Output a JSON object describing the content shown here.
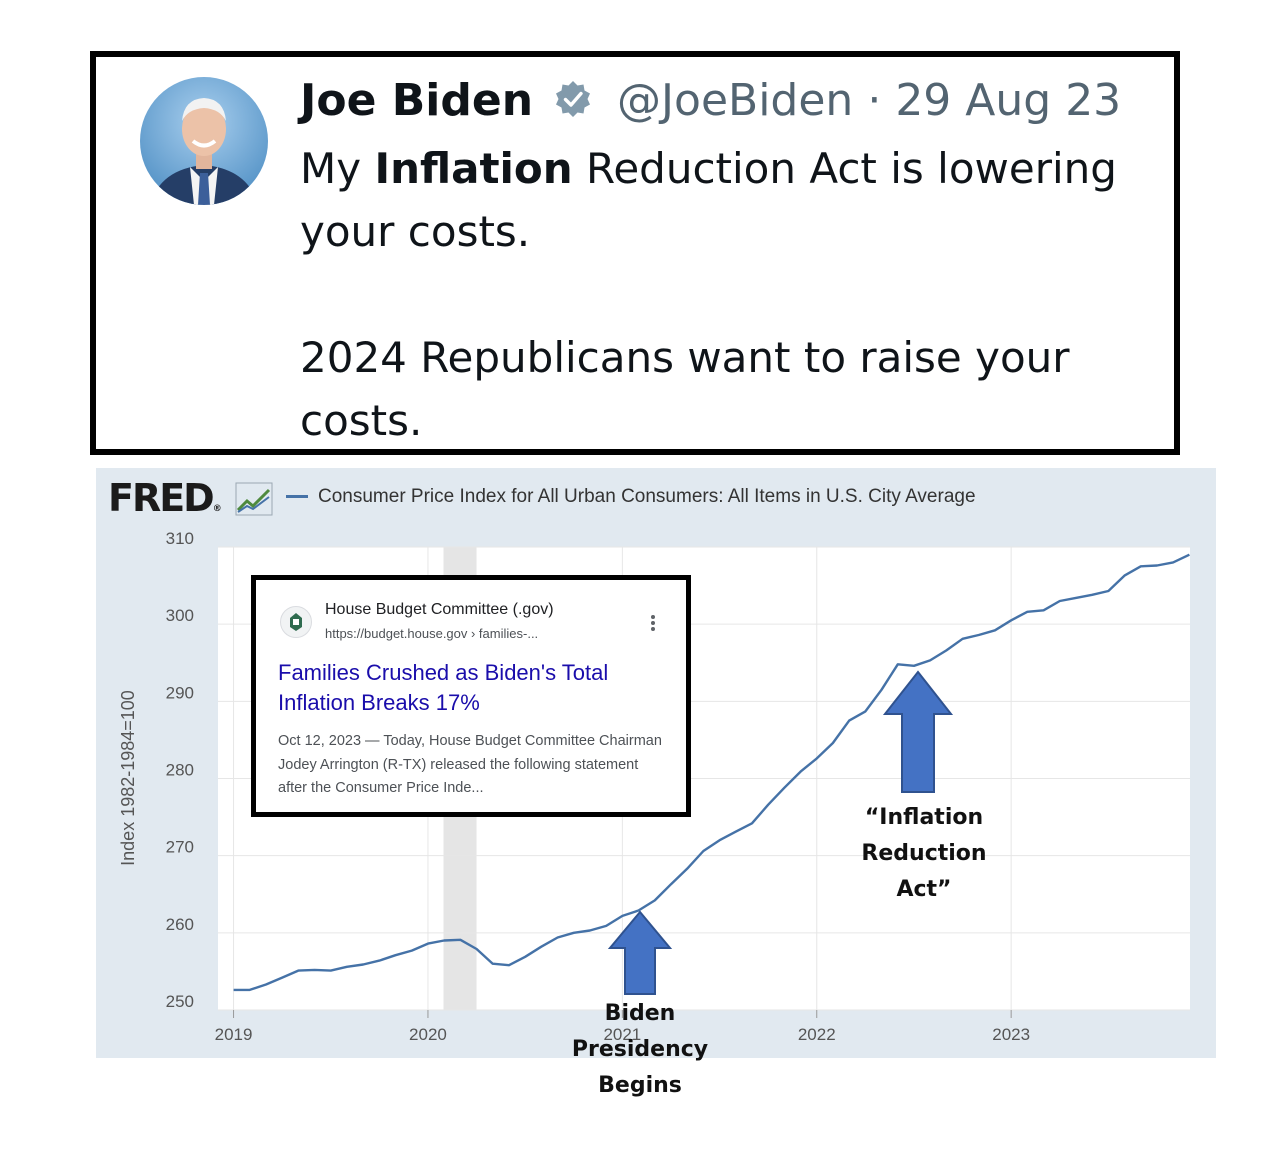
{
  "tweet": {
    "name": "Joe Biden",
    "handle": "@JoeBiden",
    "separator": "·",
    "date": "29 Aug 23",
    "text_pre": "My ",
    "text_bold": "Inflation",
    "text_post": " Reduction Act is lowering your costs.",
    "text_line2": "2024 Republicans want to raise your costs."
  },
  "fred": {
    "logo": "FRED",
    "logo_mark": "®",
    "legend": "Consumer Price Index for All Urban Consumers: All Items in U.S. City Average"
  },
  "search_card": {
    "site": "House Budget Committee (.gov)",
    "url": "https://budget.house.gov › families-...",
    "title": "Families Crushed as Biden's Total Inflation Breaks 17%",
    "snippet": "Oct 12, 2023 — Today, House Budget Committee Chairman Jodey Arrington (R-TX) released the following statement after the Consumer Price Inde..."
  },
  "annotations": {
    "presidency": [
      "Biden",
      "Presidency",
      "Begins"
    ],
    "ira": [
      "“Inflation",
      "Reduction",
      "Act”"
    ]
  },
  "colors": {
    "line": "#4572a7",
    "arrow_fill": "#4472c4",
    "chart_bg": "#e1e9f0",
    "recession": "#e5e5e5",
    "link": "#1a0dab"
  },
  "chart_data": {
    "type": "line",
    "title": "",
    "ylabel": "Index 1982-1984=100",
    "xlabel": "",
    "ylim": [
      250,
      310
    ],
    "xlim": [
      2018.92,
      2023.92
    ],
    "yticks": [
      250,
      260,
      270,
      280,
      290,
      300,
      310
    ],
    "xticks": [
      "2019",
      "2020",
      "2021",
      "2022",
      "2023"
    ],
    "grid": true,
    "legend": "top",
    "recession_band": [
      2020.08,
      2020.25
    ],
    "series": [
      {
        "name": "Consumer Price Index for All Urban Consumers: All Items in U.S. City Average",
        "x": [
          2019.0,
          2019.083,
          2019.167,
          2019.25,
          2019.333,
          2019.417,
          2019.5,
          2019.583,
          2019.667,
          2019.75,
          2019.833,
          2019.917,
          2020.0,
          2020.083,
          2020.167,
          2020.25,
          2020.333,
          2020.417,
          2020.5,
          2020.583,
          2020.667,
          2020.75,
          2020.833,
          2020.917,
          2021.0,
          2021.083,
          2021.167,
          2021.25,
          2021.333,
          2021.417,
          2021.5,
          2021.583,
          2021.667,
          2021.75,
          2021.833,
          2021.917,
          2022.0,
          2022.083,
          2022.167,
          2022.25,
          2022.333,
          2022.417,
          2022.5,
          2022.583,
          2022.667,
          2022.75,
          2022.833,
          2022.917,
          2023.0,
          2023.083,
          2023.167,
          2023.25,
          2023.333,
          2023.417,
          2023.5,
          2023.583,
          2023.667,
          2023.75,
          2023.833,
          2023.917
        ],
        "values": [
          252.6,
          252.6,
          253.3,
          254.2,
          255.1,
          255.2,
          255.1,
          255.6,
          255.9,
          256.4,
          257.1,
          257.7,
          258.6,
          259.0,
          259.1,
          257.9,
          256.0,
          255.8,
          256.9,
          258.2,
          259.4,
          260.0,
          260.3,
          260.9,
          262.2,
          262.9,
          264.2,
          266.3,
          268.3,
          270.6,
          272.0,
          273.1,
          274.2,
          276.6,
          278.8,
          280.9,
          282.6,
          284.6,
          287.5,
          288.7,
          291.5,
          294.8,
          294.6,
          295.3,
          296.6,
          298.1,
          298.6,
          299.2,
          300.5,
          301.6,
          301.8,
          303.0,
          303.4,
          303.8,
          304.3,
          306.3,
          307.5,
          307.6,
          308.0,
          309.0
        ]
      }
    ]
  }
}
